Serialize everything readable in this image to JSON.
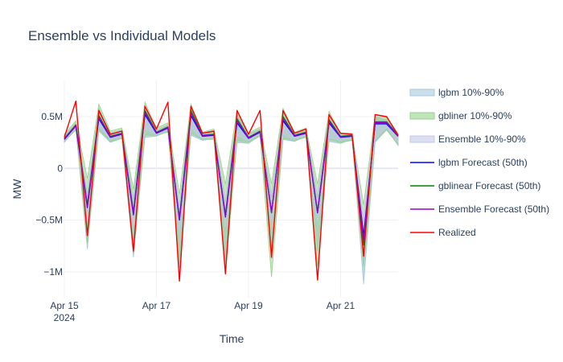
{
  "chart_data": {
    "type": "line",
    "title": "Ensemble vs Individual Models",
    "xlabel": "Time",
    "ylabel": "MW",
    "x_range": [
      "2024-04-15 00:00",
      "2024-04-22 06:00"
    ],
    "ylim": [
      -1250000,
      850000
    ],
    "x_ticks": [
      {
        "value": "2024-04-15",
        "label": "Apr 15",
        "sublabel": "2024"
      },
      {
        "value": "2024-04-17",
        "label": "Apr 17",
        "sublabel": ""
      },
      {
        "value": "2024-04-19",
        "label": "Apr 19",
        "sublabel": ""
      },
      {
        "value": "2024-04-21",
        "label": "Apr 21",
        "sublabel": ""
      }
    ],
    "y_ticks": [
      {
        "value": 500000,
        "label": "0.5M"
      },
      {
        "value": 0,
        "label": "0"
      },
      {
        "value": -500000,
        "label": "−0.5M"
      },
      {
        "value": -1000000,
        "label": "−1M"
      }
    ],
    "grid": true,
    "legend_position": "right",
    "x": [
      "2024-04-15 00:00",
      "2024-04-15 06:00",
      "2024-04-15 12:00",
      "2024-04-15 18:00",
      "2024-04-16 00:00",
      "2024-04-16 06:00",
      "2024-04-16 12:00",
      "2024-04-16 18:00",
      "2024-04-17 00:00",
      "2024-04-17 06:00",
      "2024-04-17 12:00",
      "2024-04-17 18:00",
      "2024-04-18 00:00",
      "2024-04-18 06:00",
      "2024-04-18 12:00",
      "2024-04-18 18:00",
      "2024-04-19 00:00",
      "2024-04-19 06:00",
      "2024-04-19 12:00",
      "2024-04-19 18:00",
      "2024-04-20 00:00",
      "2024-04-20 06:00",
      "2024-04-20 12:00",
      "2024-04-20 18:00",
      "2024-04-21 00:00",
      "2024-04-21 06:00",
      "2024-04-21 12:00",
      "2024-04-21 18:00",
      "2024-04-22 00:00",
      "2024-04-22 06:00"
    ],
    "bands": [
      {
        "name": "lgbm 10%-90%",
        "color": "#a6c8e0",
        "opacity": 0.75,
        "low": [
          250000,
          380000,
          -780000,
          360000,
          250000,
          290000,
          -860000,
          300000,
          310000,
          360000,
          -960000,
          320000,
          270000,
          290000,
          -900000,
          250000,
          240000,
          320000,
          -800000,
          280000,
          260000,
          310000,
          -800000,
          260000,
          240000,
          280000,
          -1120000,
          250000,
          380000,
          220000
        ],
        "high": [
          310000,
          440000,
          -250000,
          580000,
          340000,
          370000,
          -300000,
          600000,
          370000,
          420000,
          -380000,
          590000,
          340000,
          360000,
          -320000,
          520000,
          330000,
          380000,
          -280000,
          540000,
          340000,
          370000,
          -280000,
          520000,
          330000,
          330000,
          -520000,
          500000,
          470000,
          330000
        ]
      },
      {
        "name": "gbliner 10%-90%",
        "color": "#98d18b",
        "opacity": 0.55,
        "low": [
          260000,
          370000,
          -720000,
          380000,
          260000,
          290000,
          -820000,
          320000,
          320000,
          350000,
          -920000,
          340000,
          280000,
          280000,
          -1000000,
          270000,
          250000,
          310000,
          -1050000,
          290000,
          270000,
          300000,
          -950000,
          280000,
          250000,
          270000,
          -950000,
          260000,
          370000,
          230000
        ],
        "high": [
          330000,
          460000,
          -100000,
          620000,
          360000,
          390000,
          -200000,
          640000,
          390000,
          440000,
          -250000,
          620000,
          350000,
          380000,
          -150000,
          560000,
          340000,
          400000,
          -150000,
          580000,
          350000,
          390000,
          -150000,
          550000,
          340000,
          340000,
          -350000,
          520000,
          490000,
          340000
        ]
      },
      {
        "name": "Ensemble 10%-90%",
        "color": "#c5c8ea",
        "opacity": 0.6,
        "low": [
          270000,
          390000,
          -500000,
          420000,
          280000,
          310000,
          -560000,
          380000,
          330000,
          370000,
          -620000,
          390000,
          290000,
          300000,
          -560000,
          320000,
          270000,
          330000,
          -520000,
          330000,
          280000,
          320000,
          -520000,
          300000,
          270000,
          290000,
          -700000,
          290000,
          400000,
          250000
        ],
        "high": [
          300000,
          420000,
          -300000,
          520000,
          320000,
          350000,
          -360000,
          540000,
          360000,
          400000,
          -400000,
          540000,
          330000,
          340000,
          -360000,
          470000,
          320000,
          360000,
          -330000,
          490000,
          330000,
          350000,
          -330000,
          470000,
          320000,
          320000,
          -500000,
          460000,
          450000,
          320000
        ]
      }
    ],
    "series": [
      {
        "name": "lgbm Forecast (50th)",
        "color": "#0000ff",
        "width": 1.3,
        "values": [
          280000,
          410000,
          -380000,
          480000,
          300000,
          330000,
          -450000,
          520000,
          340000,
          390000,
          -500000,
          510000,
          310000,
          320000,
          -470000,
          440000,
          290000,
          350000,
          -420000,
          460000,
          310000,
          340000,
          -430000,
          440000,
          300000,
          310000,
          -650000,
          430000,
          430000,
          310000
        ]
      },
      {
        "name": "gblinear Forecast (50th)",
        "color": "#008000",
        "width": 1.3,
        "values": [
          290000,
          420000,
          -350000,
          510000,
          310000,
          340000,
          -420000,
          560000,
          350000,
          400000,
          -480000,
          560000,
          320000,
          330000,
          -450000,
          480000,
          300000,
          360000,
          -430000,
          500000,
          320000,
          350000,
          -420000,
          470000,
          310000,
          320000,
          -740000,
          450000,
          450000,
          320000
        ]
      },
      {
        "name": "Ensemble Forecast (50th)",
        "color": "#9400d3",
        "width": 1.3,
        "values": [
          285000,
          415000,
          -370000,
          495000,
          305000,
          335000,
          -440000,
          540000,
          345000,
          395000,
          -490000,
          535000,
          315000,
          325000,
          -460000,
          460000,
          295000,
          355000,
          -425000,
          480000,
          315000,
          345000,
          -425000,
          455000,
          305000,
          315000,
          -690000,
          440000,
          440000,
          315000
        ]
      },
      {
        "name": "Realized",
        "color": "#ff0000",
        "width": 1.4,
        "values": [
          300000,
          650000,
          -650000,
          560000,
          330000,
          360000,
          -800000,
          600000,
          380000,
          640000,
          -1090000,
          600000,
          340000,
          360000,
          -1020000,
          560000,
          330000,
          560000,
          -860000,
          560000,
          340000,
          380000,
          -1080000,
          520000,
          340000,
          330000,
          -850000,
          520000,
          500000,
          320000
        ]
      }
    ]
  }
}
